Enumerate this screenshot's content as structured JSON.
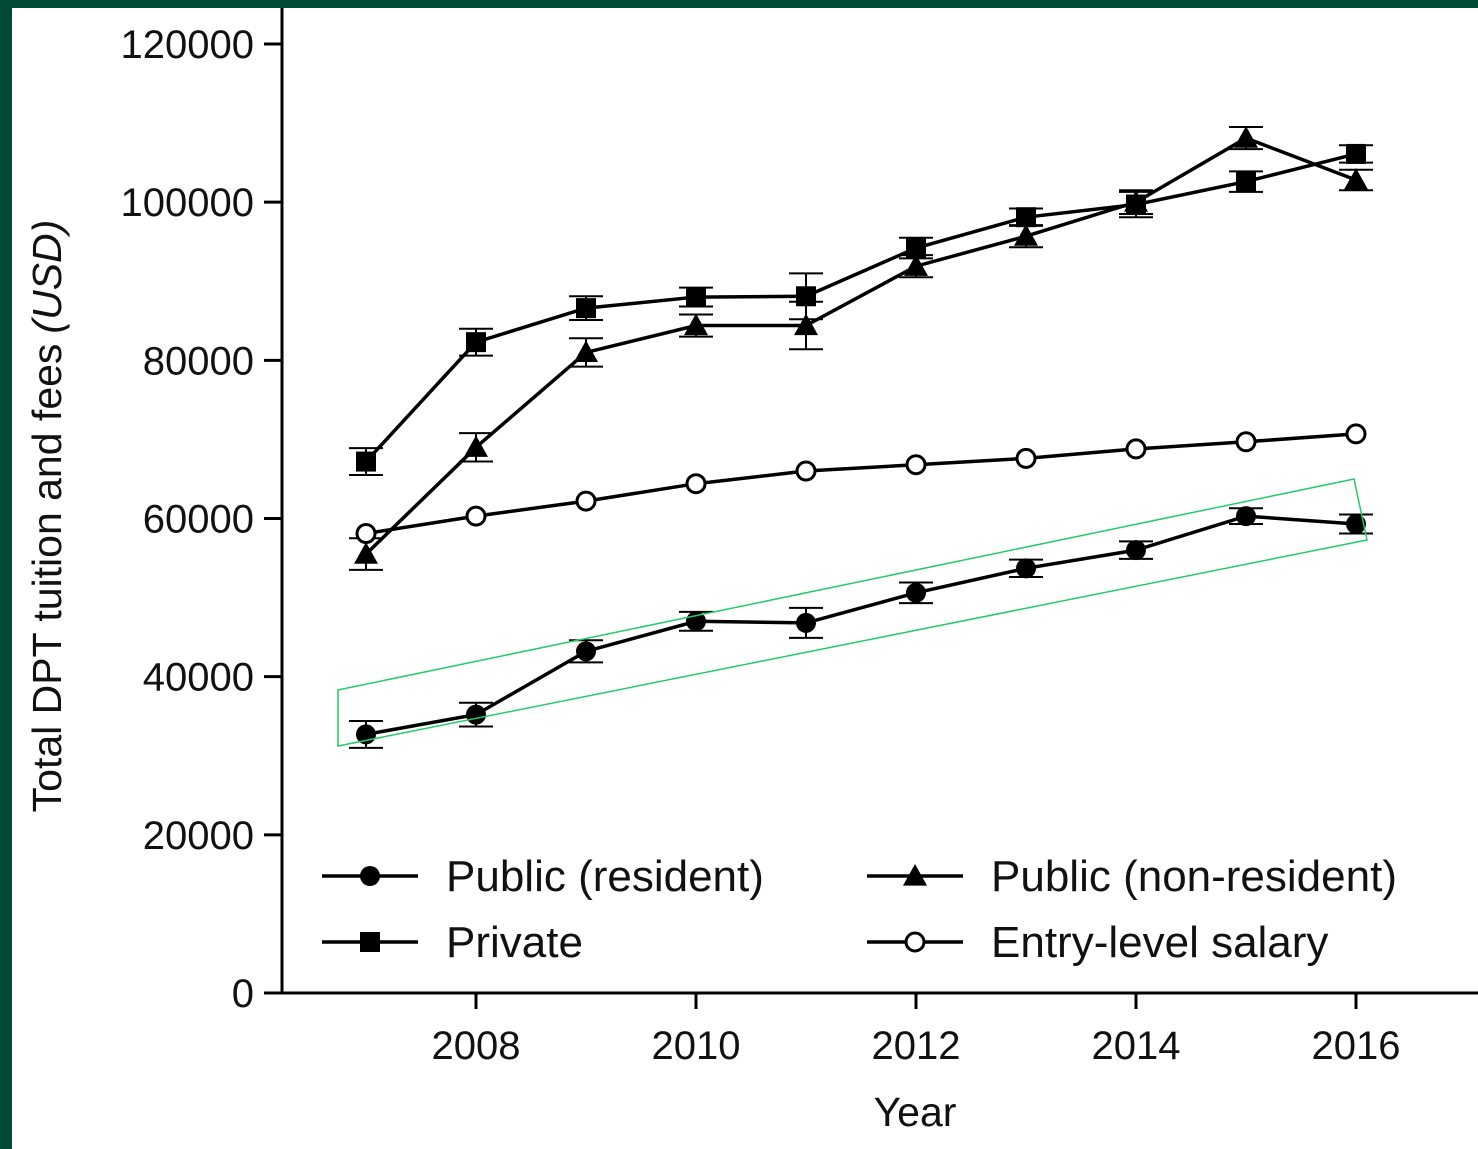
{
  "chart_data": {
    "type": "line",
    "title": "",
    "xlabel": "Year",
    "ylabel": "Total DPT tuition and fees",
    "ylabel_unit": "(USD)",
    "xlim": [
      2006.55,
      2017.1
    ],
    "ylim": [
      0,
      120000
    ],
    "x_ticks": [
      2008,
      2010,
      2012,
      2014,
      2016
    ],
    "y_ticks": [
      0,
      20000,
      40000,
      60000,
      80000,
      100000,
      120000
    ],
    "x": [
      2007,
      2008,
      2009,
      2010,
      2011,
      2012,
      2013,
      2014,
      2015,
      2016
    ],
    "series": [
      {
        "name": "Public (resident)",
        "marker": "circle-filled",
        "values": [
          32700,
          35200,
          43200,
          47000,
          46800,
          50600,
          53700,
          56000,
          60300,
          59300
        ],
        "errors": [
          1700,
          1500,
          1400,
          1200,
          1900,
          1300,
          1100,
          1100,
          1000,
          1200
        ]
      },
      {
        "name": "Private",
        "marker": "square-filled",
        "values": [
          67200,
          82300,
          86600,
          88000,
          88100,
          94200,
          98100,
          99700,
          102600,
          106100
        ],
        "errors": [
          1700,
          1700,
          1500,
          1200,
          2900,
          1300,
          1100,
          1600,
          1300,
          1100
        ]
      },
      {
        "name": "Public (non-resident)",
        "marker": "triangle-filled",
        "values": [
          55500,
          69000,
          81000,
          84400,
          84400,
          91900,
          95700,
          100000,
          108100,
          102800
        ],
        "errors": [
          2000,
          1800,
          1800,
          1400,
          3000,
          1400,
          1400,
          1500,
          1400,
          1300
        ]
      },
      {
        "name": "Entry-level salary",
        "marker": "circle-open",
        "values": [
          58100,
          60300,
          62200,
          64400,
          66000,
          66800,
          67600,
          68800,
          69700,
          70700
        ],
        "errors": [
          0,
          0,
          0,
          0,
          0,
          0,
          0,
          0,
          0,
          0
        ]
      }
    ],
    "legend": {
      "placement": "bottom-inside",
      "columns": 2
    },
    "highlight": {
      "target_series": "Public (resident)",
      "color": "#22cc66"
    },
    "grid": false
  }
}
